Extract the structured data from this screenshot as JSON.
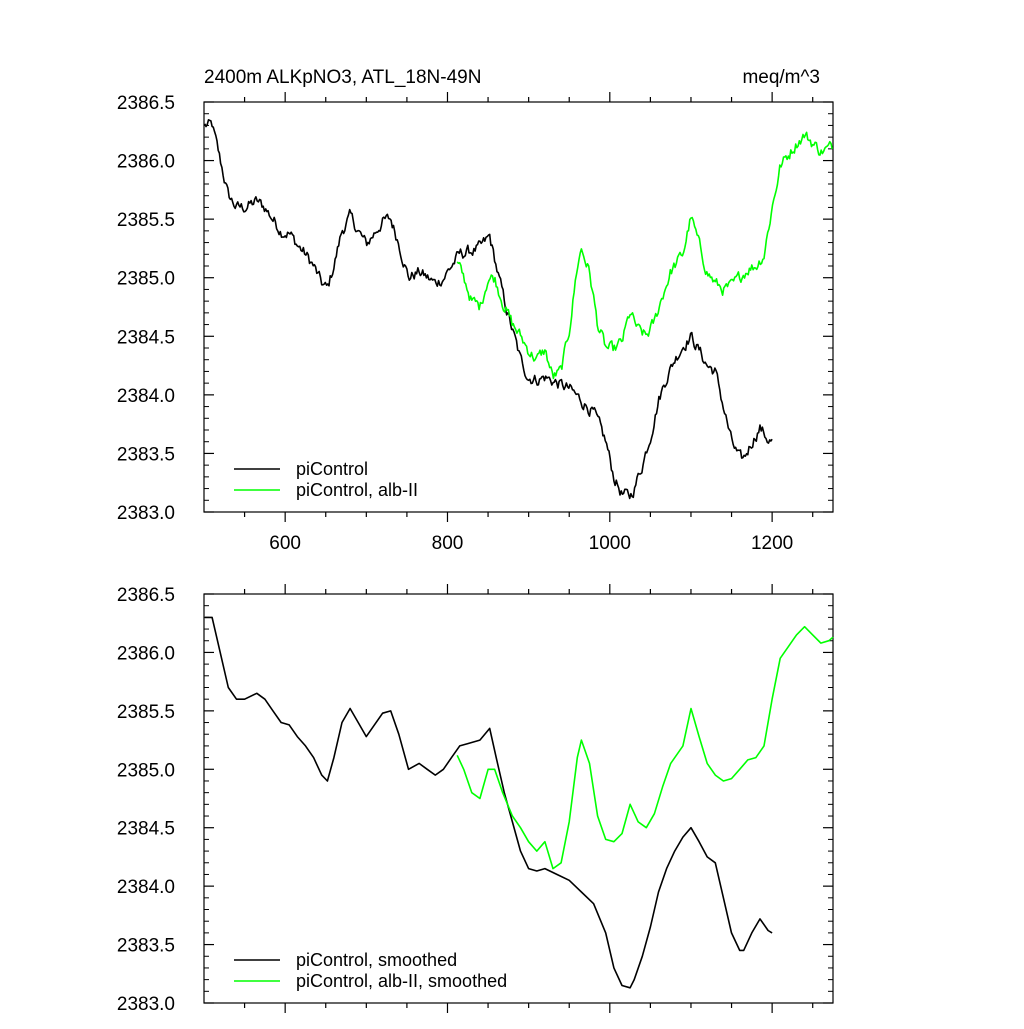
{
  "chart_data": [
    {
      "type": "line",
      "title": "2400m ALKpNO3, ATL_18N-49N",
      "units": "meq/m^3",
      "xlabel": "",
      "ylabel": "",
      "xlim": [
        500,
        1275
      ],
      "ylim": [
        2383.0,
        2386.5
      ],
      "x_ticks": [
        600,
        800,
        1000,
        1200
      ],
      "x_tick_labels": [
        "600",
        "800",
        "1000",
        "1200"
      ],
      "y_ticks": [
        2383.0,
        2383.5,
        2384.0,
        2384.5,
        2385.0,
        2385.5,
        2386.0,
        2386.5
      ],
      "y_tick_labels": [
        "2383.0",
        "2383.5",
        "2384.0",
        "2384.5",
        "2385.0",
        "2385.5",
        "2386.0",
        "2386.5"
      ],
      "grid": false,
      "legend": "bottom-left",
      "series": [
        {
          "name": "piControl",
          "color": "#000000",
          "noisy": true,
          "x": [
            501,
            510,
            520,
            530,
            540,
            550,
            565,
            575,
            585,
            595,
            605,
            615,
            625,
            635,
            645,
            652,
            660,
            670,
            680,
            690,
            700,
            710,
            720,
            730,
            740,
            752,
            765,
            775,
            785,
            795,
            805,
            815,
            825,
            840,
            852,
            860,
            870,
            880,
            890,
            900,
            910,
            920,
            935,
            950,
            965,
            980,
            995,
            1005,
            1015,
            1025,
            1030,
            1040,
            1050,
            1060,
            1070,
            1080,
            1090,
            1100,
            1110,
            1120,
            1130,
            1140,
            1150,
            1160,
            1165,
            1175,
            1185,
            1195,
            1200
          ],
          "y": [
            2386.3,
            2386.3,
            2386.0,
            2385.7,
            2385.6,
            2385.6,
            2385.65,
            2385.6,
            2385.5,
            2385.4,
            2385.38,
            2385.28,
            2385.2,
            2385.1,
            2384.95,
            2384.9,
            2385.1,
            2385.4,
            2385.52,
            2385.4,
            2385.28,
            2385.38,
            2385.48,
            2385.5,
            2385.3,
            2385.0,
            2385.05,
            2385.0,
            2384.95,
            2385.0,
            2385.1,
            2385.2,
            2385.22,
            2385.25,
            2385.35,
            2385.1,
            2384.8,
            2384.55,
            2384.3,
            2384.15,
            2384.13,
            2384.15,
            2384.1,
            2384.05,
            2383.95,
            2383.85,
            2383.6,
            2383.3,
            2383.15,
            2383.13,
            2383.2,
            2383.4,
            2383.65,
            2383.95,
            2384.15,
            2384.3,
            2384.42,
            2384.5,
            2384.38,
            2384.25,
            2384.2,
            2383.9,
            2383.6,
            2383.45,
            2383.45,
            2383.6,
            2383.72,
            2383.62,
            2383.6
          ]
        },
        {
          "name": "piControl, alb-II",
          "color": "#00ff00",
          "noisy": true,
          "x": [
            812,
            820,
            830,
            840,
            850,
            858,
            868,
            880,
            890,
            900,
            910,
            920,
            930,
            940,
            950,
            960,
            965,
            975,
            985,
            995,
            1005,
            1015,
            1025,
            1035,
            1045,
            1055,
            1065,
            1075,
            1085,
            1090,
            1100,
            1110,
            1120,
            1130,
            1140,
            1150,
            1160,
            1170,
            1180,
            1190,
            1200,
            1210,
            1220,
            1230,
            1240,
            1250,
            1260,
            1270,
            1275
          ],
          "y": [
            2385.12,
            2385.0,
            2384.8,
            2384.75,
            2385.0,
            2385.0,
            2384.8,
            2384.6,
            2384.5,
            2384.38,
            2384.3,
            2384.38,
            2384.15,
            2384.2,
            2384.55,
            2385.1,
            2385.25,
            2385.05,
            2384.6,
            2384.4,
            2384.38,
            2384.45,
            2384.7,
            2384.55,
            2384.5,
            2384.62,
            2384.85,
            2385.05,
            2385.15,
            2385.2,
            2385.52,
            2385.28,
            2385.05,
            2384.95,
            2384.9,
            2384.92,
            2385.0,
            2385.08,
            2385.1,
            2385.2,
            2385.6,
            2385.95,
            2386.05,
            2386.15,
            2386.22,
            2386.15,
            2386.08,
            2386.1,
            2386.13
          ]
        }
      ]
    },
    {
      "type": "line",
      "title": "",
      "units": "",
      "xlabel": "",
      "ylabel": "",
      "xlim": [
        500,
        1275
      ],
      "ylim": [
        2383.0,
        2386.5
      ],
      "x_ticks": [
        600,
        800,
        1000,
        1200
      ],
      "x_tick_labels": [],
      "y_ticks": [
        2383.0,
        2383.5,
        2384.0,
        2384.5,
        2385.0,
        2385.5,
        2386.0,
        2386.5
      ],
      "y_tick_labels": [
        "2383.0",
        "2383.5",
        "2384.0",
        "2384.5",
        "2385.0",
        "2385.5",
        "2386.0",
        "2386.5"
      ],
      "grid": false,
      "legend": "bottom-left",
      "series": [
        {
          "name": "piControl, smoothed",
          "color": "#000000",
          "noisy": false,
          "x": [
            501,
            510,
            520,
            530,
            540,
            550,
            565,
            575,
            585,
            595,
            605,
            615,
            625,
            635,
            645,
            652,
            660,
            670,
            680,
            690,
            700,
            710,
            720,
            730,
            740,
            752,
            765,
            775,
            785,
            795,
            805,
            815,
            825,
            840,
            852,
            860,
            870,
            880,
            890,
            900,
            910,
            920,
            935,
            950,
            965,
            980,
            995,
            1005,
            1015,
            1025,
            1030,
            1040,
            1050,
            1060,
            1070,
            1080,
            1090,
            1100,
            1110,
            1120,
            1130,
            1140,
            1150,
            1160,
            1165,
            1175,
            1185,
            1195,
            1200
          ],
          "y": [
            2386.3,
            2386.3,
            2386.0,
            2385.7,
            2385.6,
            2385.6,
            2385.65,
            2385.6,
            2385.5,
            2385.4,
            2385.38,
            2385.28,
            2385.2,
            2385.1,
            2384.95,
            2384.9,
            2385.1,
            2385.4,
            2385.52,
            2385.4,
            2385.28,
            2385.38,
            2385.48,
            2385.5,
            2385.3,
            2385.0,
            2385.05,
            2385.0,
            2384.95,
            2385.0,
            2385.1,
            2385.2,
            2385.22,
            2385.25,
            2385.35,
            2385.1,
            2384.8,
            2384.55,
            2384.3,
            2384.15,
            2384.13,
            2384.15,
            2384.1,
            2384.05,
            2383.95,
            2383.85,
            2383.6,
            2383.3,
            2383.15,
            2383.13,
            2383.2,
            2383.4,
            2383.65,
            2383.95,
            2384.15,
            2384.3,
            2384.42,
            2384.5,
            2384.38,
            2384.25,
            2384.2,
            2383.9,
            2383.6,
            2383.45,
            2383.45,
            2383.6,
            2383.72,
            2383.62,
            2383.6
          ]
        },
        {
          "name": "piControl, alb-II, smoothed",
          "color": "#00ff00",
          "noisy": false,
          "x": [
            812,
            820,
            830,
            840,
            850,
            858,
            868,
            880,
            890,
            900,
            910,
            920,
            930,
            940,
            950,
            960,
            965,
            975,
            985,
            995,
            1005,
            1015,
            1025,
            1035,
            1045,
            1055,
            1065,
            1075,
            1085,
            1090,
            1100,
            1110,
            1120,
            1130,
            1140,
            1150,
            1160,
            1170,
            1180,
            1190,
            1200,
            1210,
            1220,
            1230,
            1240,
            1250,
            1260,
            1270,
            1275
          ],
          "y": [
            2385.12,
            2385.0,
            2384.8,
            2384.75,
            2385.0,
            2385.0,
            2384.8,
            2384.6,
            2384.5,
            2384.38,
            2384.3,
            2384.38,
            2384.15,
            2384.2,
            2384.55,
            2385.1,
            2385.25,
            2385.05,
            2384.6,
            2384.4,
            2384.38,
            2384.45,
            2384.7,
            2384.55,
            2384.5,
            2384.62,
            2384.85,
            2385.05,
            2385.15,
            2385.2,
            2385.52,
            2385.28,
            2385.05,
            2384.95,
            2384.9,
            2384.92,
            2385.0,
            2385.08,
            2385.1,
            2385.2,
            2385.6,
            2385.95,
            2386.05,
            2386.15,
            2386.22,
            2386.15,
            2386.08,
            2386.1,
            2386.13
          ]
        }
      ]
    }
  ]
}
